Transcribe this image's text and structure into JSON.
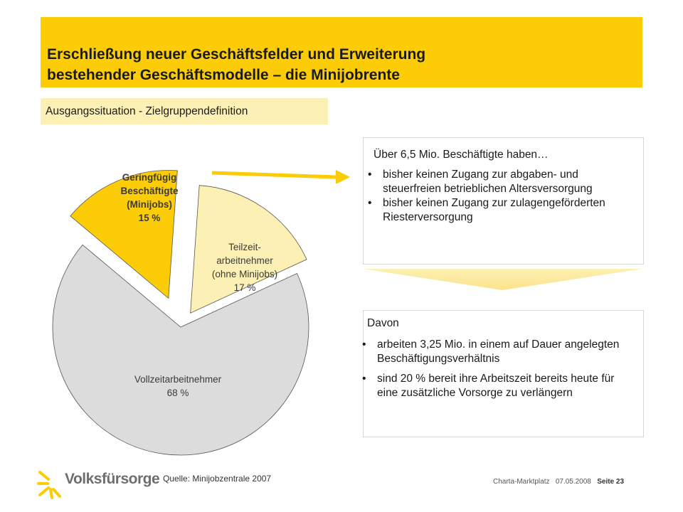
{
  "header": {
    "title_line1": "Erschließung neuer Geschäftsfelder und Erweiterung",
    "title_line2": "bestehender Geschäftsmodelle – die Minijobrente",
    "subtitle": "Ausgangssituation - Zielgruppendefinition",
    "accent_color": "#fccd07"
  },
  "chart_data": {
    "type": "pie",
    "exploded": [
      "Geringfügig Beschäftigte (Minijobs)",
      "Teilzeit-arbeitnehmer (ohne Minijobs)"
    ],
    "slices": [
      {
        "label_lines": [
          "Geringfügig",
          "Beschäftigte",
          "(Minijobs)",
          "15 %"
        ],
        "name": "Geringfügig Beschäftigte (Minijobs)",
        "value": 15,
        "color": "#fccd07"
      },
      {
        "label_lines": [
          "Teilzeit-",
          "arbeitnehmer",
          "(ohne Minijobs)",
          "17 %"
        ],
        "name": "Teilzeit-arbeitnehmer (ohne Minijobs)",
        "value": 17,
        "color": "#fdf0b4"
      },
      {
        "label_lines": [
          "Vollzeitarbeitnehmer",
          "68 %"
        ],
        "name": "Vollzeitarbeitnehmer",
        "value": 68,
        "color": "#dcdcdc"
      }
    ]
  },
  "info_box1": {
    "intro": "Über 6,5 Mio. Beschäftigte haben…",
    "bullet": "•",
    "items": [
      "bisher keinen Zugang zur abgaben- und steuerfreien betrieblichen Altersversorgung",
      "bisher keinen Zugang zur zulagengeförderten Riesterversorgung"
    ]
  },
  "info_box2": {
    "intro": "Davon",
    "bullet": "•",
    "items": [
      "arbeiten 3,25 Mio. in einem auf Dauer angelegten Beschäftigungsverhältnis",
      "sind 20 % bereit ihre Arbeitszeit bereits heute für eine zusätzliche Vorsorge zu verlängern"
    ]
  },
  "footer": {
    "source": "Quelle: Minijobzentrale 2007",
    "event": "Charta-Marktplatz",
    "date": "07.05.2008",
    "page": "Seite 23",
    "logo_text": "Volksfürsorge"
  }
}
